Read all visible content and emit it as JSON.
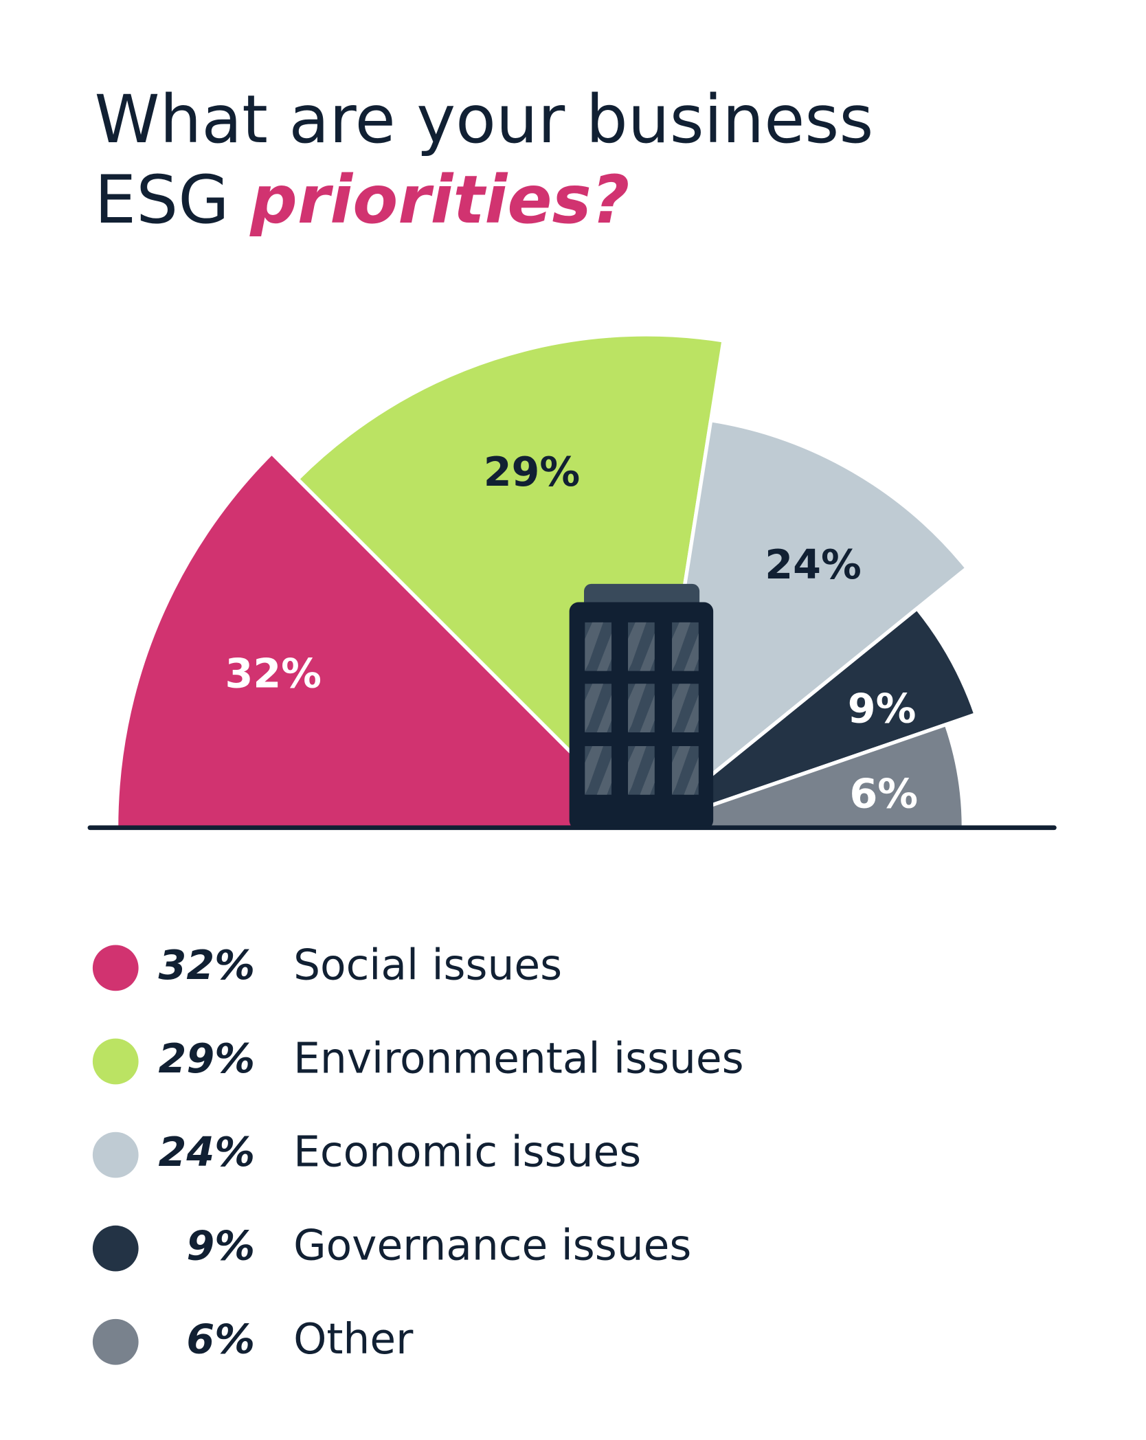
{
  "title": {
    "line1": "What are your business",
    "line2_plain": "ESG ",
    "line2_accent": "priorities?"
  },
  "colors": {
    "accent": "#d13370",
    "text": "#112033"
  },
  "chart_data": {
    "type": "pie",
    "variant": "semicircle-radial",
    "title": "What are your business ESG priorities?",
    "unit": "%",
    "legend_position": "bottom",
    "categories": [
      "Social issues",
      "Environmental issues",
      "Economic issues",
      "Governance issues",
      "Other"
    ],
    "values": [
      32,
      29,
      24,
      9,
      6
    ],
    "labels": [
      "32%",
      "29%",
      "24%",
      "9%",
      "6%"
    ],
    "colors": [
      "#d13370",
      "#bbe363",
      "#bfcbd3",
      "#233345",
      "#79828d"
    ],
    "label_colors": [
      "#ffffff",
      "#112033",
      "#112033",
      "#ffffff",
      "#ffffff"
    ]
  }
}
